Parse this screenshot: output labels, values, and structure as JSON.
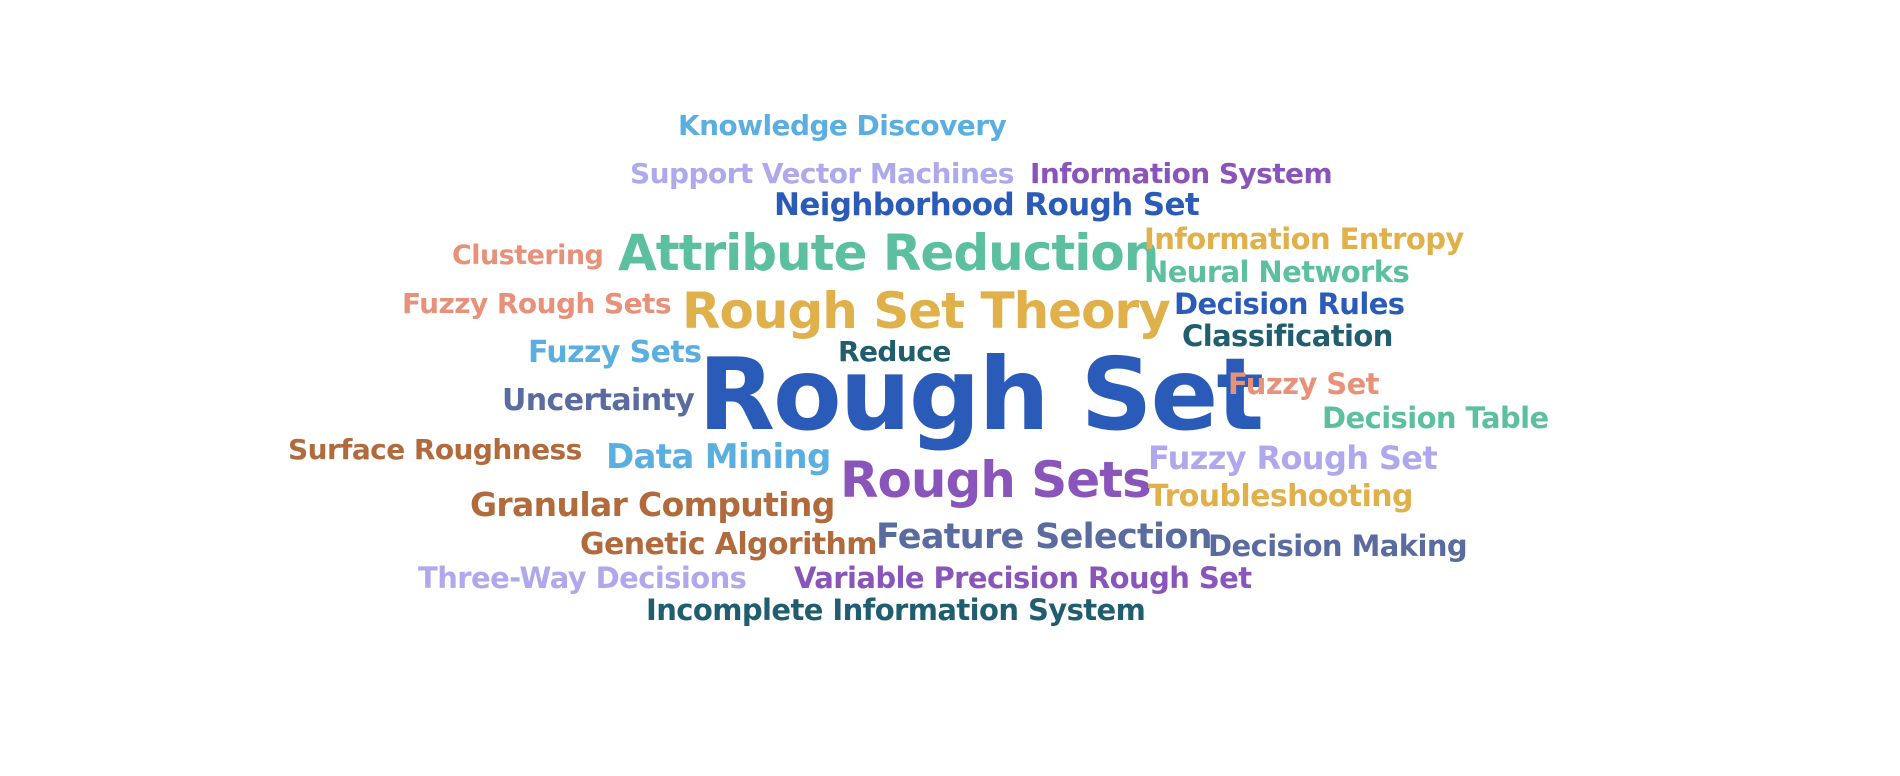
{
  "palette": {
    "blue": "#2b5bb8",
    "teal": "#5cc0a0",
    "gold": "#e0b04a",
    "purple": "#8a55bb",
    "lavender": "#b0a8ec",
    "sky": "#5aafe0",
    "salmon": "#e8917a",
    "brown": "#b06a3c",
    "slate": "#5a6b9f",
    "darkteal": "#1f5d6f"
  },
  "words": [
    {
      "text": "Rough Set",
      "weight": 100,
      "color": "#2b5bb8"
    },
    {
      "text": "Rough Set Theory",
      "weight": 45,
      "color": "#e0b04a"
    },
    {
      "text": "Attribute Reduction",
      "weight": 45,
      "color": "#5cc0a0"
    },
    {
      "text": "Rough Sets",
      "weight": 45,
      "color": "#8a55bb"
    },
    {
      "text": "Knowledge Discovery",
      "weight": 26,
      "color": "#5aafe0"
    },
    {
      "text": "Support Vector Machines",
      "weight": 26,
      "color": "#b0a8ec"
    },
    {
      "text": "Information System",
      "weight": 26,
      "color": "#8a55bb"
    },
    {
      "text": "Neighborhood Rough Set",
      "weight": 28,
      "color": "#2b5bb8"
    },
    {
      "text": "Clustering",
      "weight": 26,
      "color": "#e8917a"
    },
    {
      "text": "Information Entropy",
      "weight": 27,
      "color": "#e0b04a"
    },
    {
      "text": "Neural Networks",
      "weight": 27,
      "color": "#5cc0a0"
    },
    {
      "text": "Fuzzy Rough Sets",
      "weight": 26,
      "color": "#e8917a"
    },
    {
      "text": "Decision Rules",
      "weight": 27,
      "color": "#2b5bb8"
    },
    {
      "text": "Classification",
      "weight": 27,
      "color": "#1f5d6f"
    },
    {
      "text": "Fuzzy Sets",
      "weight": 28,
      "color": "#5aafe0"
    },
    {
      "text": "Reduce",
      "weight": 26,
      "color": "#1f5d6f"
    },
    {
      "text": "Uncertainty",
      "weight": 28,
      "color": "#5a6b9f"
    },
    {
      "text": "Fuzzy Set",
      "weight": 27,
      "color": "#e8917a"
    },
    {
      "text": "Decision Table",
      "weight": 27,
      "color": "#5cc0a0"
    },
    {
      "text": "Surface Roughness",
      "weight": 26,
      "color": "#b06a3c"
    },
    {
      "text": "Data Mining",
      "weight": 32,
      "color": "#5aafe0"
    },
    {
      "text": "Fuzzy Rough Set",
      "weight": 30,
      "color": "#b0a8ec"
    },
    {
      "text": "Troubleshooting",
      "weight": 28,
      "color": "#e0b04a"
    },
    {
      "text": "Granular Computing",
      "weight": 31,
      "color": "#b06a3c"
    },
    {
      "text": "Feature Selection",
      "weight": 32,
      "color": "#5a6b9f"
    },
    {
      "text": "Genetic Algorithm",
      "weight": 28,
      "color": "#b06a3c"
    },
    {
      "text": "Decision Making",
      "weight": 27,
      "color": "#5a6b9f"
    },
    {
      "text": "Three-Way Decisions",
      "weight": 27,
      "color": "#b0a8ec"
    },
    {
      "text": "Variable Precision Rough Set",
      "weight": 27,
      "color": "#8a55bb"
    },
    {
      "text": "Incomplete Information System",
      "weight": 27,
      "color": "#1f5d6f"
    }
  ]
}
